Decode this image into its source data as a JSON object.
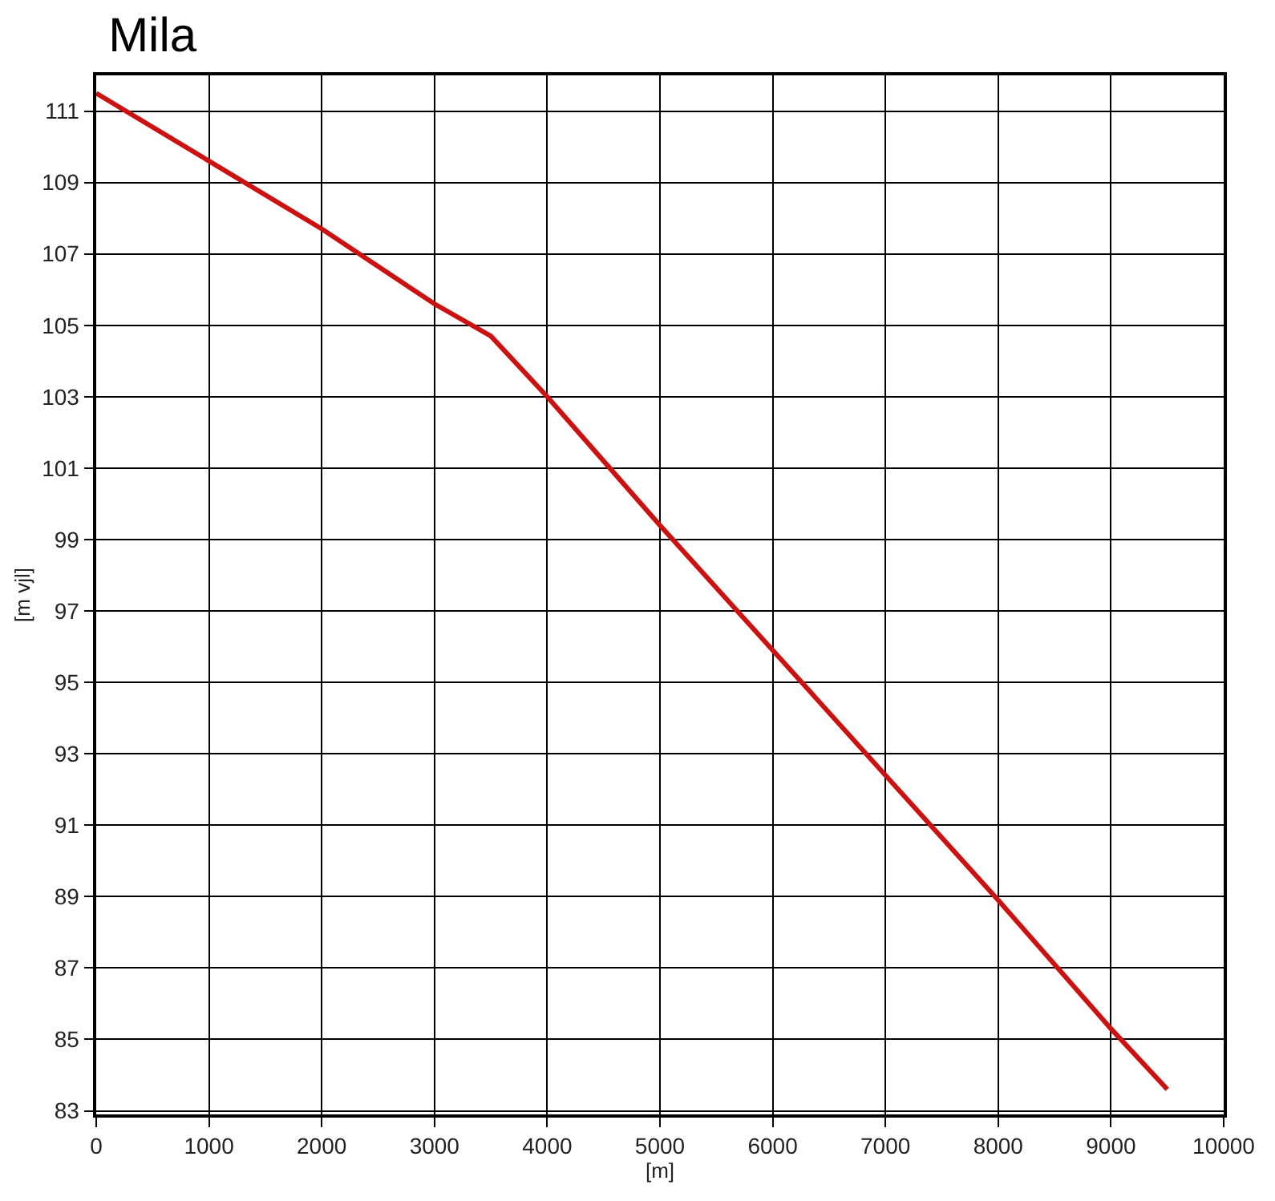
{
  "chart_data": {
    "type": "line",
    "title": "Mila",
    "xlabel": "[m]",
    "ylabel": "[m vjl]",
    "x": [
      0,
      1000,
      2000,
      3000,
      3500,
      4000,
      5000,
      6000,
      7000,
      8000,
      9000,
      9500
    ],
    "series": [
      {
        "color": "#cc1111",
        "values": [
          111.5,
          109.6,
          107.7,
          105.6,
          104.7,
          103.0,
          99.4,
          95.9,
          92.4,
          88.9,
          85.3,
          83.6
        ]
      }
    ],
    "xlim": [
      0,
      10000
    ],
    "ylim": [
      82.9,
      112
    ],
    "xticks": [
      0,
      1000,
      2000,
      3000,
      4000,
      5000,
      6000,
      7000,
      8000,
      9000,
      10000
    ],
    "yticks": [
      83,
      85,
      87,
      89,
      91,
      93,
      95,
      97,
      99,
      101,
      103,
      105,
      107,
      109,
      111
    ],
    "grid": true,
    "marker": "none",
    "line_style": "solid"
  }
}
